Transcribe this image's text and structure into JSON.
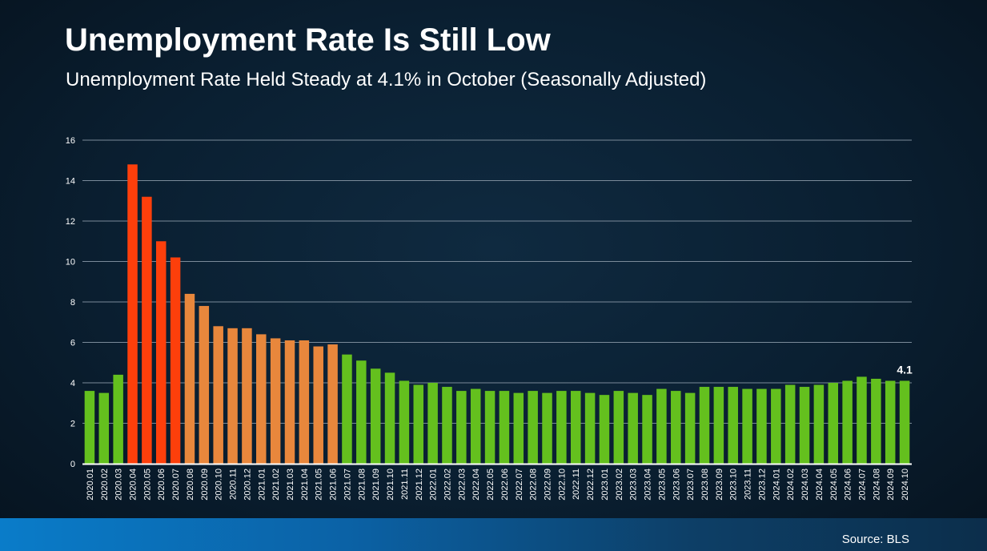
{
  "title": "Unemployment Rate Is Still Low",
  "subtitle": "Unemployment Rate Held Steady at 4.1% in October (Seasonally Adjusted)",
  "source": "Source: BLS",
  "colors": {
    "green": "#64c01e",
    "red": "#fd3f0b",
    "orange": "#e8873c",
    "grid": "#7a8a99",
    "axis": "#ffffff",
    "text": "#ffffff"
  },
  "chart_data": {
    "type": "bar",
    "xlabel": "",
    "ylabel": "",
    "ylim": [
      0,
      16
    ],
    "yticks": [
      0,
      2,
      4,
      6,
      8,
      10,
      12,
      14,
      16
    ],
    "grid": true,
    "categories": [
      "2020.01",
      "2020.02",
      "2020.03",
      "2020.04",
      "2020.05",
      "2020.06",
      "2020.07",
      "2020.08",
      "2020.09",
      "2020.10",
      "2020.11",
      "2020.12",
      "2021.01",
      "2021.02",
      "2021.03",
      "2021.04",
      "2021.05",
      "2021.06",
      "2021.07",
      "2021.08",
      "2021.09",
      "2021.10",
      "2021.11",
      "2021.12",
      "2022.01",
      "2022.02",
      "2022.03",
      "2022.04",
      "2022.05",
      "2022.06",
      "2022.07",
      "2022.08",
      "2022.09",
      "2022.10",
      "2022.11",
      "2022.12",
      "2023.01",
      "2023.02",
      "2023.03",
      "2023.04",
      "2023.05",
      "2023.06",
      "2023.07",
      "2023.08",
      "2023.09",
      "2023.10",
      "2023.11",
      "2023.12",
      "2024.01",
      "2024.02",
      "2024.03",
      "2024.04",
      "2024.05",
      "2024.06",
      "2024.07",
      "2024.08",
      "2024.09",
      "2024.10"
    ],
    "values": [
      3.6,
      3.5,
      4.4,
      14.8,
      13.2,
      11.0,
      10.2,
      8.4,
      7.8,
      6.8,
      6.7,
      6.7,
      6.4,
      6.2,
      6.1,
      6.1,
      5.8,
      5.9,
      5.4,
      5.1,
      4.7,
      4.5,
      4.1,
      3.9,
      4.0,
      3.8,
      3.6,
      3.7,
      3.6,
      3.6,
      3.5,
      3.6,
      3.5,
      3.6,
      3.6,
      3.5,
      3.4,
      3.6,
      3.5,
      3.4,
      3.7,
      3.6,
      3.5,
      3.8,
      3.8,
      3.8,
      3.7,
      3.7,
      3.7,
      3.9,
      3.8,
      3.9,
      4.0,
      4.1,
      4.3,
      4.2,
      4.1,
      4.1
    ],
    "bar_colors": [
      "green",
      "green",
      "green",
      "red",
      "red",
      "red",
      "red",
      "orange",
      "orange",
      "orange",
      "orange",
      "orange",
      "orange",
      "orange",
      "orange",
      "orange",
      "orange",
      "orange",
      "green",
      "green",
      "green",
      "green",
      "green",
      "green",
      "green",
      "green",
      "green",
      "green",
      "green",
      "green",
      "green",
      "green",
      "green",
      "green",
      "green",
      "green",
      "green",
      "green",
      "green",
      "green",
      "green",
      "green",
      "green",
      "green",
      "green",
      "green",
      "green",
      "green",
      "green",
      "green",
      "green",
      "green",
      "green",
      "green",
      "green",
      "green",
      "green",
      "green"
    ],
    "annotations": [
      {
        "index": 57,
        "text": "4.1"
      }
    ]
  }
}
